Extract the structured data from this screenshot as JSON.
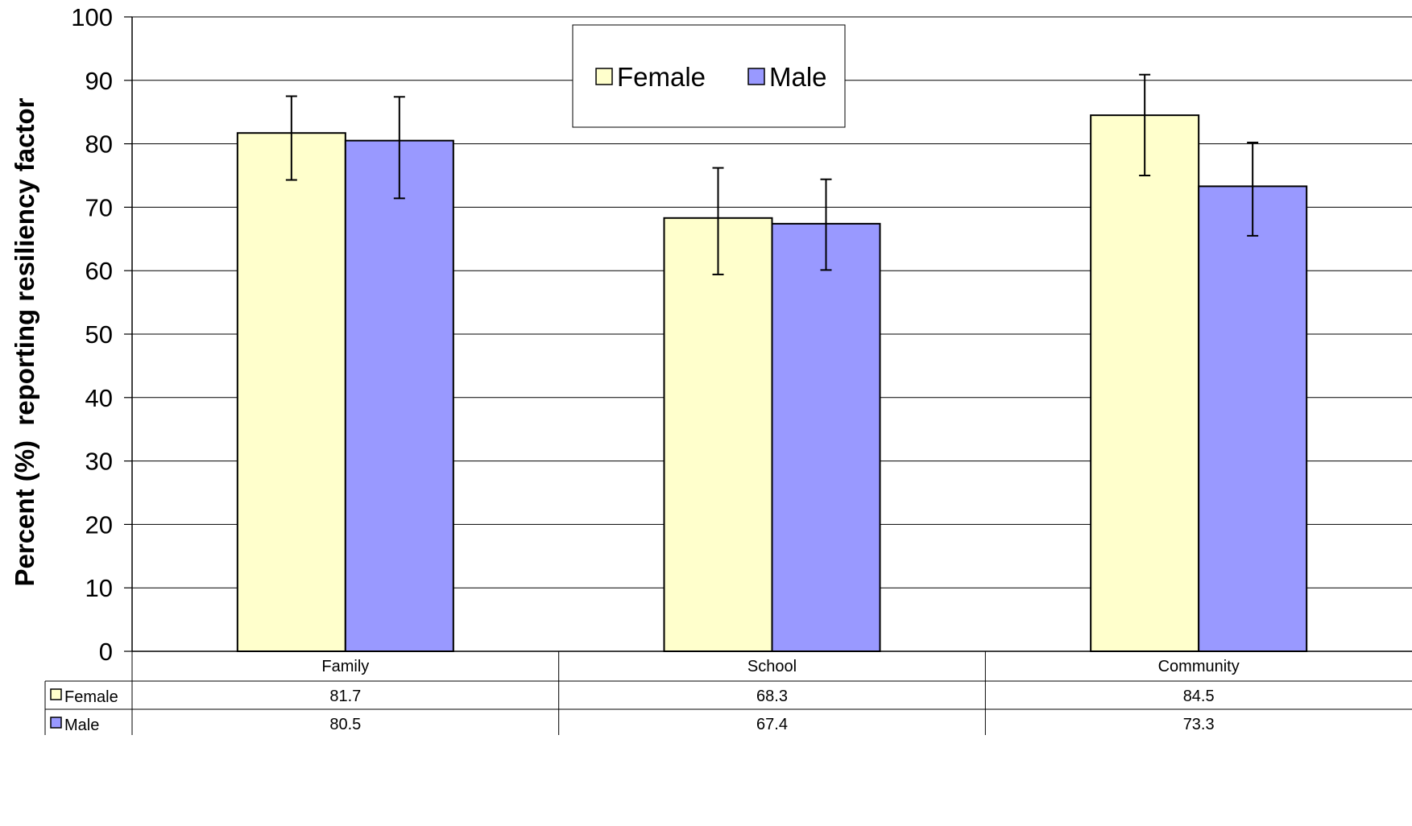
{
  "chart_data": {
    "type": "bar",
    "title": "",
    "xlabel": "",
    "ylabel": "Percent (%)  reporting resiliency factor",
    "ylim": [
      0,
      100
    ],
    "yticks": [
      0,
      10,
      20,
      30,
      40,
      50,
      60,
      70,
      80,
      90,
      100
    ],
    "grid": true,
    "legend_position": "top-center",
    "categories": [
      "Family",
      "School",
      "Community"
    ],
    "series": [
      {
        "name": "Female",
        "color": "#FFFFCC",
        "values": [
          81.7,
          68.3,
          84.5
        ],
        "error_low": [
          74.3,
          59.4,
          75.0
        ],
        "error_high": [
          87.5,
          76.2,
          90.9
        ]
      },
      {
        "name": "Male",
        "color": "#9999FF",
        "values": [
          80.5,
          67.4,
          73.3
        ],
        "error_low": [
          71.4,
          60.1,
          65.5
        ],
        "error_high": [
          87.4,
          74.4,
          80.2
        ]
      }
    ],
    "data_table": {
      "rows": [
        {
          "label": "Female",
          "values": [
            "81.7",
            "68.3",
            "84.5"
          ]
        },
        {
          "label": "Male",
          "values": [
            "80.5",
            "67.4",
            "73.3"
          ]
        }
      ]
    }
  }
}
